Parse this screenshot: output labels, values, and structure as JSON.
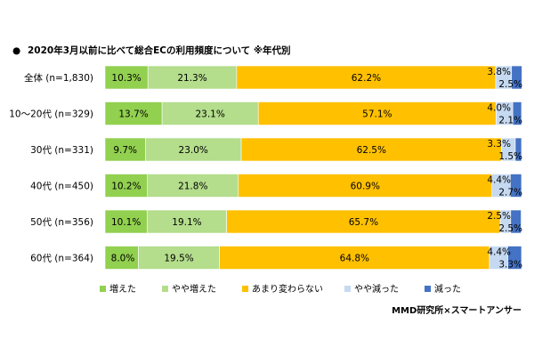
{
  "chart_data": {
    "type": "bar",
    "orientation": "horizontal",
    "stacked": true,
    "percent": true,
    "title": "2020年3月以前に比べて総合ECの利用頻度について ※年代別",
    "title_bullet": "●",
    "categories": [
      "全体 (n=1,830)",
      "10～20代 (n=329)",
      "30代 (n=331)",
      "40代 (n=450)",
      "50代 (n=356)",
      "60代 (n=364)"
    ],
    "series": [
      {
        "name": "増えた",
        "color": "#92D050",
        "values": [
          10.3,
          13.7,
          9.7,
          10.2,
          10.1,
          8.0
        ]
      },
      {
        "name": "やや増えた",
        "color": "#B4DD8C",
        "values": [
          21.3,
          23.1,
          23.0,
          21.8,
          19.1,
          19.5
        ]
      },
      {
        "name": "あまり変わらない",
        "color": "#FFC000",
        "values": [
          62.2,
          57.1,
          62.5,
          60.9,
          65.7,
          64.8
        ]
      },
      {
        "name": "やや減った",
        "color": "#C5D9F1",
        "values": [
          3.8,
          4.0,
          3.3,
          4.4,
          2.5,
          4.4
        ]
      },
      {
        "name": "減った",
        "color": "#4472C4",
        "values": [
          2.5,
          2.1,
          1.5,
          2.7,
          2.5,
          3.3
        ]
      }
    ],
    "xlim": [
      0,
      100
    ],
    "legend_position": "bottom",
    "grid": false
  },
  "source": "MMD研究所×スマートアンサー"
}
